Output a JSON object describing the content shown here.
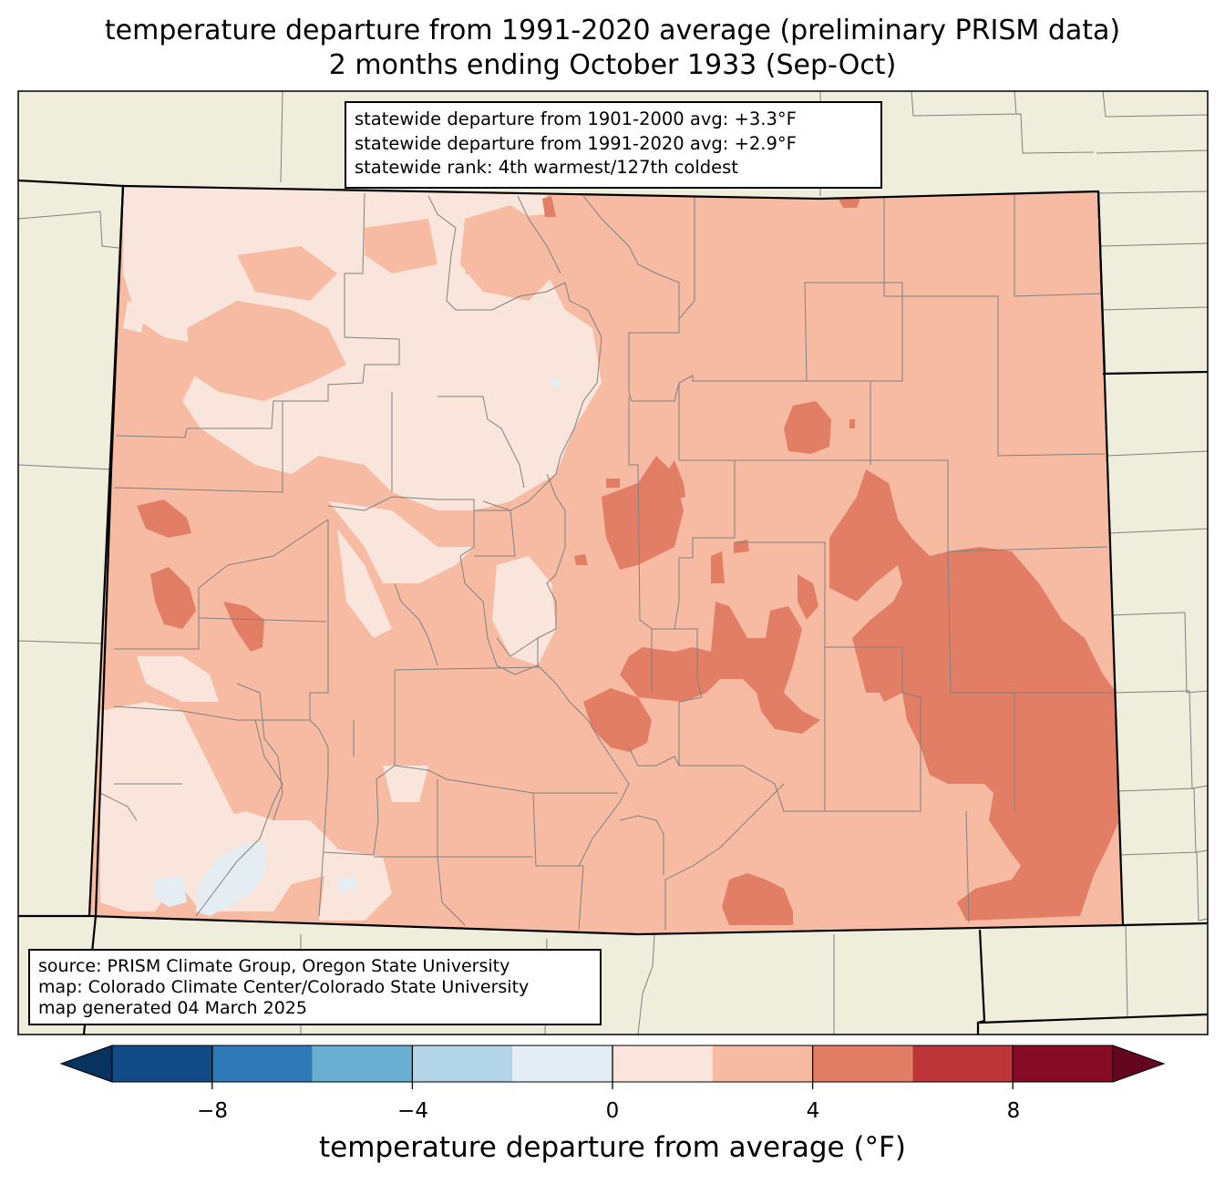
{
  "title": {
    "line1": "temperature departure from 1991-2020 average (preliminary PRISM data)",
    "line2": "2 months ending October 1933 (Sep-Oct)"
  },
  "stats": {
    "line1": "statewide departure from 1901-2000 avg: +3.3°F",
    "line2": "statewide departure from 1991-2020 avg: +2.9°F",
    "line3": "statewide rank: 4th warmest/127th coldest"
  },
  "source": {
    "line1": "source: PRISM Climate Group, Oregon State University",
    "line2": "map: Colorado Climate Center/Colorado State University",
    "line3": "map generated 04 March 2025"
  },
  "colorbar": {
    "label": "temperature departure from average (°F)",
    "ticks": [
      "−8",
      "−4",
      "0",
      "4",
      "8"
    ],
    "bins": [
      -10,
      -8,
      -6,
      -4,
      -2,
      0,
      2,
      4,
      6,
      8,
      10
    ],
    "colors": [
      "#134b87",
      "#2f7ab6",
      "#6aaed3",
      "#b2d5e7",
      "#e3edf3",
      "#f9e5db",
      "#f6bba2",
      "#e27e66",
      "#bd3439",
      "#860c26"
    ],
    "under_color": "#08325f",
    "over_color": "#650620"
  },
  "map_colors": {
    "background": "#efeddb",
    "state_border": "#000000",
    "county_line": "#808080"
  }
}
